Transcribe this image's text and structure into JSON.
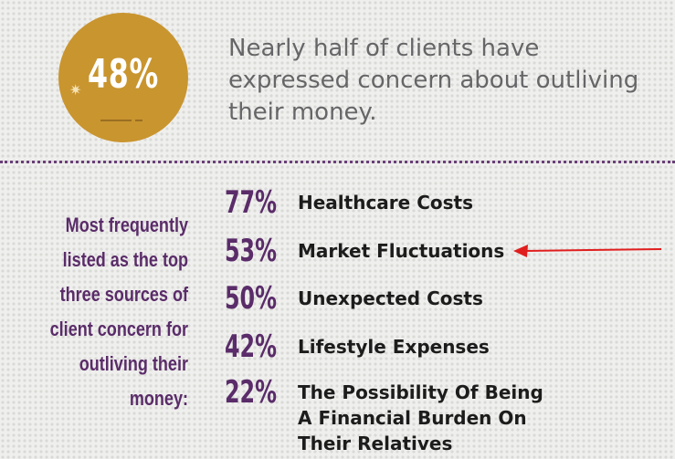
{
  "badge": {
    "value": "48%",
    "color": "#c9952f"
  },
  "headline": "Nearly half of clients have expressed concern about outliving their money.",
  "side_caption": "Most frequently listed as the top three sources of client concern for outliving their money:",
  "stats": [
    {
      "percent": "77%",
      "label": "Healthcare Costs"
    },
    {
      "percent": "53%",
      "label": "Market Fluctuations"
    },
    {
      "percent": "50%",
      "label": "Unexpected Costs"
    },
    {
      "percent": "42%",
      "label": "Lifestyle Expenses"
    },
    {
      "percent": "22%",
      "label": "The Possibility Of Being\nA Financial Burden On\nTheir Relatives"
    }
  ],
  "colors": {
    "accent_purple": "#5a2c69",
    "headline_gray": "#666668",
    "arrow_red": "#e01e1e"
  },
  "annotation": {
    "arrow_icon": "left-arrow-icon",
    "points_to_stat": "Market Fluctuations"
  }
}
